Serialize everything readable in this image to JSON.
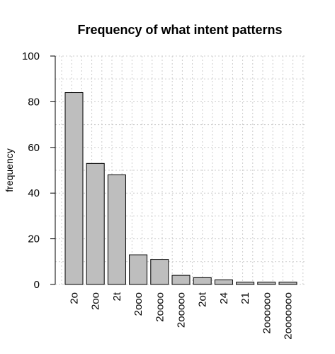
{
  "chart_data": {
    "type": "bar",
    "title": "Frequency of what intent patterns",
    "xlabel": "",
    "ylabel": "frequency",
    "ylim": [
      0,
      100
    ],
    "yticks": [
      0,
      20,
      40,
      60,
      80,
      100
    ],
    "grid": true,
    "bar_color": "#bebebe",
    "categories": [
      "2o",
      "2oo",
      "2t",
      "2ooo",
      "2oooo",
      "2ooooo",
      "2ot",
      "24",
      "21",
      "2oooooo",
      "2ooooooo"
    ],
    "values": [
      84,
      53,
      48,
      13,
      11,
      4,
      3,
      2,
      1,
      1,
      1
    ]
  }
}
